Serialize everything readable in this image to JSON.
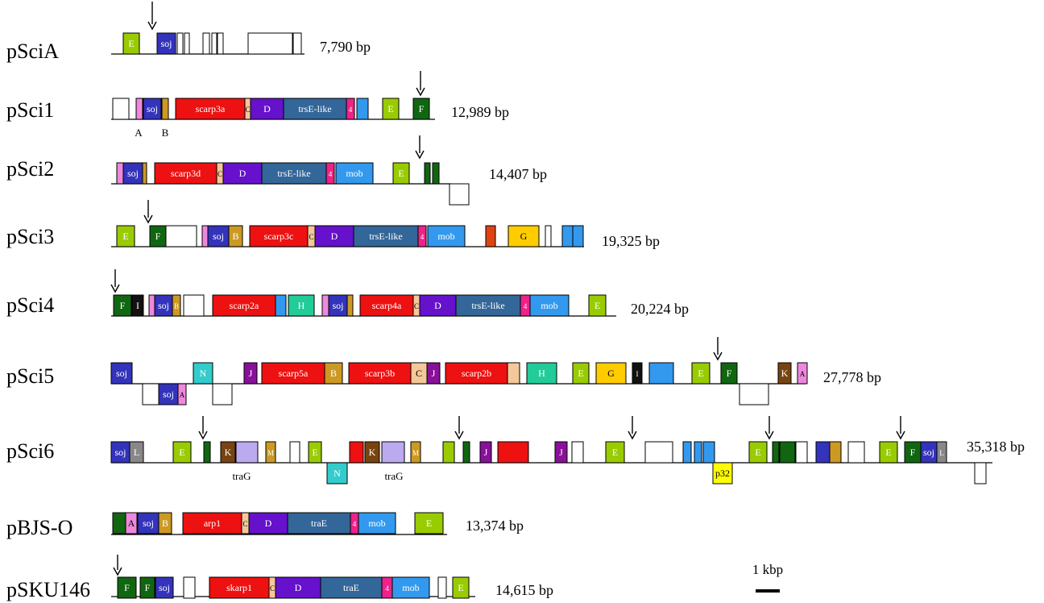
{
  "plasmids": [
    {
      "name": "pSciA",
      "size": "7,790 bp",
      "genes": [
        {
          "text": "E",
          "color": "#99cc00"
        },
        {
          "text": "soj",
          "color": "#3333bb"
        },
        {
          "text": "",
          "color": "#ffffff"
        },
        {
          "text": "",
          "color": "#ffffff"
        },
        {
          "text": "",
          "color": "#ffffff"
        },
        {
          "text": "",
          "color": "#ffffff"
        },
        {
          "text": "",
          "color": "#ffffff"
        },
        {
          "text": "",
          "color": "#ffffff"
        },
        {
          "text": "",
          "color": "#ffffff"
        }
      ],
      "below_labels": []
    },
    {
      "name": "pSci1",
      "size": "12,989 bp",
      "genes": [
        {
          "text": "",
          "color": "#ffffff"
        },
        {
          "text": "",
          "color": "#ee88dd"
        },
        {
          "text": "soj",
          "color": "#3333bb"
        },
        {
          "text": "",
          "color": "#cc9922"
        },
        {
          "text": "scarp3a",
          "color": "#ee1111"
        },
        {
          "text": "C",
          "color": "#f5c89a"
        },
        {
          "text": "D",
          "color": "#6611cc"
        },
        {
          "text": "trsE-like",
          "color": "#336699"
        },
        {
          "text": "4",
          "color": "#ee2288"
        },
        {
          "text": "",
          "color": "#3399ee"
        },
        {
          "text": "E",
          "color": "#99cc00"
        },
        {
          "text": "F",
          "color": "#116611"
        }
      ],
      "below_labels": [
        {
          "text": "A"
        },
        {
          "text": "B"
        }
      ]
    },
    {
      "name": "pSci2",
      "size": "14,407 bp",
      "genes": [
        {
          "text": "",
          "color": "#ee88dd"
        },
        {
          "text": "soj",
          "color": "#3333bb"
        },
        {
          "text": "",
          "color": "#cc9922"
        },
        {
          "text": "scarp3d",
          "color": "#ee1111"
        },
        {
          "text": "C",
          "color": "#f5c89a"
        },
        {
          "text": "D",
          "color": "#6611cc"
        },
        {
          "text": "trsE-like",
          "color": "#336699"
        },
        {
          "text": "4",
          "color": "#ee2288"
        },
        {
          "text": "mob",
          "color": "#3399ee"
        },
        {
          "text": "E",
          "color": "#99cc00"
        },
        {
          "text": "",
          "color": "#116611"
        },
        {
          "text": "",
          "color": "#116611"
        },
        {
          "text": "",
          "color": "#ffffff"
        }
      ],
      "below_labels": []
    },
    {
      "name": "pSci3",
      "size": "19,325 bp",
      "genes": [
        {
          "text": "E",
          "color": "#99cc00"
        },
        {
          "text": "F",
          "color": "#116611"
        },
        {
          "text": "",
          "color": "#ffffff"
        },
        {
          "text": "",
          "color": "#ee88dd"
        },
        {
          "text": "soj",
          "color": "#3333bb"
        },
        {
          "text": "B",
          "color": "#cc9922"
        },
        {
          "text": "scarp3c",
          "color": "#ee1111"
        },
        {
          "text": "C",
          "color": "#f5c89a"
        },
        {
          "text": "D",
          "color": "#6611cc"
        },
        {
          "text": "trsE-like",
          "color": "#336699"
        },
        {
          "text": "4",
          "color": "#ee2288"
        },
        {
          "text": "mob",
          "color": "#3399ee"
        },
        {
          "text": "",
          "color": "#dd4411"
        },
        {
          "text": "G",
          "color": "#ffcc00"
        },
        {
          "text": "",
          "color": "#ffffff"
        },
        {
          "text": "",
          "color": "#3399ee"
        },
        {
          "text": "",
          "color": "#3399ee"
        }
      ],
      "below_labels": []
    },
    {
      "name": "pSci4",
      "size": "20,224 bp",
      "genes": [
        {
          "text": "F",
          "color": "#116611"
        },
        {
          "text": "I",
          "color": "#111111"
        },
        {
          "text": "",
          "color": "#ee88dd"
        },
        {
          "text": "soj",
          "color": "#3333bb"
        },
        {
          "text": "B",
          "color": "#cc9922"
        },
        {
          "text": "",
          "color": "#ffffff"
        },
        {
          "text": "scarp2a",
          "color": "#ee1111"
        },
        {
          "text": "",
          "color": "#3399ee"
        },
        {
          "text": "H",
          "color": "#22cc99"
        },
        {
          "text": "",
          "color": "#ee88dd"
        },
        {
          "text": "soj",
          "color": "#3333bb"
        },
        {
          "text": "",
          "color": "#cc9922"
        },
        {
          "text": "scarp4a",
          "color": "#ee1111"
        },
        {
          "text": "C",
          "color": "#f5c89a"
        },
        {
          "text": "D",
          "color": "#6611cc"
        },
        {
          "text": "trsE-like",
          "color": "#336699"
        },
        {
          "text": "4",
          "color": "#ee2288"
        },
        {
          "text": "mob",
          "color": "#3399ee"
        },
        {
          "text": "E",
          "color": "#99cc00"
        }
      ],
      "below_labels": []
    },
    {
      "name": "pSci5",
      "size": "27,778 bp",
      "genes": [
        {
          "text": "soj",
          "color": "#3333bb"
        },
        {
          "text": "",
          "color": "#ffffff"
        },
        {
          "text": "soj",
          "color": "#3333bb"
        },
        {
          "text": "A",
          "color": "#ee88dd"
        },
        {
          "text": "N",
          "color": "#33cccc"
        },
        {
          "text": "",
          "color": "#ffffff"
        },
        {
          "text": "J",
          "color": "#881199"
        },
        {
          "text": "scarp5a",
          "color": "#ee1111"
        },
        {
          "text": "B",
          "color": "#cc9922"
        },
        {
          "text": "scarp3b",
          "color": "#ee1111"
        },
        {
          "text": "C",
          "color": "#f5c89a"
        },
        {
          "text": "J",
          "color": "#881199"
        },
        {
          "text": "scarp2b",
          "color": "#ee1111"
        },
        {
          "text": "",
          "color": "#f5c89a"
        },
        {
          "text": "H",
          "color": "#22cc99"
        },
        {
          "text": "E",
          "color": "#99cc00"
        },
        {
          "text": "G",
          "color": "#ffcc00"
        },
        {
          "text": "I",
          "color": "#111111"
        },
        {
          "text": "",
          "color": "#3399ee"
        },
        {
          "text": "E",
          "color": "#99cc00"
        },
        {
          "text": "F",
          "color": "#116611"
        },
        {
          "text": "",
          "color": "#ffffff"
        },
        {
          "text": "K",
          "color": "#774411"
        },
        {
          "text": "A",
          "color": "#ee88dd"
        }
      ],
      "below_labels": []
    },
    {
      "name": "pSci6",
      "size": "35,318 bp",
      "genes": [
        {
          "text": "soj",
          "color": "#3333bb"
        },
        {
          "text": "L",
          "color": "#888888"
        },
        {
          "text": "E",
          "color": "#99cc00"
        },
        {
          "text": "",
          "color": "#116611"
        },
        {
          "text": "K",
          "color": "#774411"
        },
        {
          "text": "",
          "color": "#bbaaee"
        },
        {
          "text": "M",
          "color": "#cc9922"
        },
        {
          "text": "",
          "color": "#ffffff"
        },
        {
          "text": "E",
          "color": "#99cc00"
        },
        {
          "text": "N",
          "color": "#33cccc"
        },
        {
          "text": "",
          "color": "#ee1111"
        },
        {
          "text": "K",
          "color": "#774411"
        },
        {
          "text": "",
          "color": "#bbaaee"
        },
        {
          "text": "M",
          "color": "#cc9922"
        },
        {
          "text": "",
          "color": "#99cc00"
        },
        {
          "text": "",
          "color": "#116611"
        },
        {
          "text": "J",
          "color": "#881199"
        },
        {
          "text": "",
          "color": "#ee1111"
        },
        {
          "text": "J",
          "color": "#881199"
        },
        {
          "text": "",
          "color": "#ffffff"
        },
        {
          "text": "E",
          "color": "#99cc00"
        },
        {
          "text": "",
          "color": "#ffffff"
        },
        {
          "text": "",
          "color": "#3399ee"
        },
        {
          "text": "",
          "color": "#3399ee"
        },
        {
          "text": "",
          "color": "#3399ee"
        },
        {
          "text": "p32",
          "color": "#ffff00"
        },
        {
          "text": "E",
          "color": "#99cc00"
        },
        {
          "text": "",
          "color": "#116611"
        },
        {
          "text": "",
          "color": "#116611"
        },
        {
          "text": "",
          "color": "#ffffff"
        },
        {
          "text": "",
          "color": "#3333bb"
        },
        {
          "text": "",
          "color": "#cc9922"
        },
        {
          "text": "",
          "color": "#ffffff"
        },
        {
          "text": "E",
          "color": "#99cc00"
        },
        {
          "text": "F",
          "color": "#116611"
        },
        {
          "text": "soj",
          "color": "#3333bb"
        },
        {
          "text": "L",
          "color": "#888888"
        },
        {
          "text": "",
          "color": "#ffffff"
        }
      ],
      "below_labels": [
        {
          "text": "traG"
        },
        {
          "text": "traG"
        }
      ]
    },
    {
      "name": "pBJS-O",
      "size": "13,374 bp",
      "genes": [
        {
          "text": "",
          "color": "#116611"
        },
        {
          "text": "A",
          "color": "#ee88dd"
        },
        {
          "text": "soj",
          "color": "#3333bb"
        },
        {
          "text": "B",
          "color": "#cc9922"
        },
        {
          "text": "arp1",
          "color": "#ee1111"
        },
        {
          "text": "C",
          "color": "#f5c89a"
        },
        {
          "text": "D",
          "color": "#6611cc"
        },
        {
          "text": "traE",
          "color": "#336699"
        },
        {
          "text": "4",
          "color": "#ee2288"
        },
        {
          "text": "mob",
          "color": "#3399ee"
        },
        {
          "text": "E",
          "color": "#99cc00"
        }
      ],
      "below_labels": []
    },
    {
      "name": "pSKU146",
      "size": "14,615 bp",
      "genes": [
        {
          "text": "F",
          "color": "#116611"
        },
        {
          "text": "F",
          "color": "#116611"
        },
        {
          "text": "soj",
          "color": "#3333bb"
        },
        {
          "text": "",
          "color": "#ffffff"
        },
        {
          "text": "skarp1",
          "color": "#ee1111"
        },
        {
          "text": "C",
          "color": "#f5c89a"
        },
        {
          "text": "D",
          "color": "#6611cc"
        },
        {
          "text": "traE",
          "color": "#336699"
        },
        {
          "text": "4",
          "color": "#ee2288"
        },
        {
          "text": "mob",
          "color": "#3399ee"
        },
        {
          "text": "",
          "color": "#ffffff"
        },
        {
          "text": "E",
          "color": "#99cc00"
        }
      ],
      "below_labels": []
    }
  ],
  "scale_bar": {
    "label": "1 kbp"
  },
  "arrow_icon": "down-arrow-icon"
}
